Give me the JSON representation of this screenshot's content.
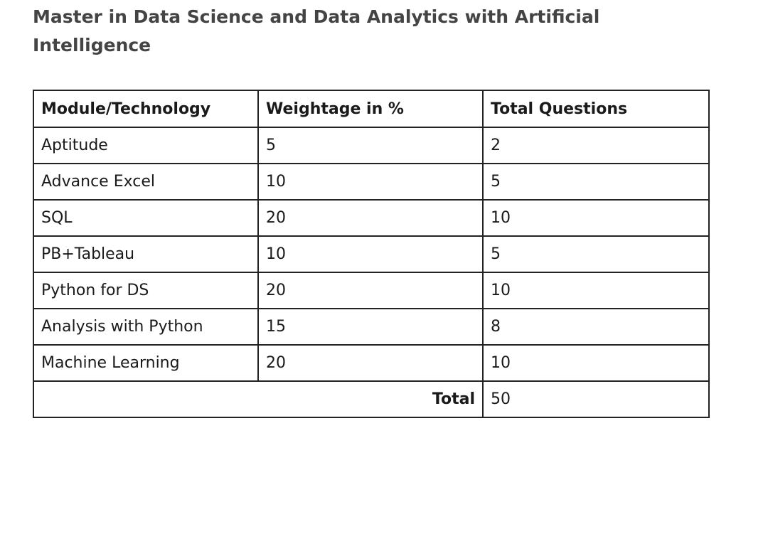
{
  "title": "Master in Data Science and Data Analytics with Artificial Intelligence",
  "table": {
    "headers": [
      "Module/Technology",
      "Weightage in %",
      "Total Questions"
    ],
    "rows": [
      {
        "module": "Aptitude",
        "weightage": "5",
        "questions": "2"
      },
      {
        "module": "Advance Excel",
        "weightage": "10",
        "questions": "5"
      },
      {
        "module": "SQL",
        "weightage": "20",
        "questions": "10"
      },
      {
        "module": "PB+Tableau",
        "weightage": "10",
        "questions": "5"
      },
      {
        "module": "Python for DS",
        "weightage": "20",
        "questions": "10"
      },
      {
        "module": "Analysis with Python",
        "weightage": "15",
        "questions": "8"
      },
      {
        "module": "Machine Learning",
        "weightage": "20",
        "questions": "10"
      }
    ],
    "total_label": "Total",
    "total_value": "50"
  }
}
